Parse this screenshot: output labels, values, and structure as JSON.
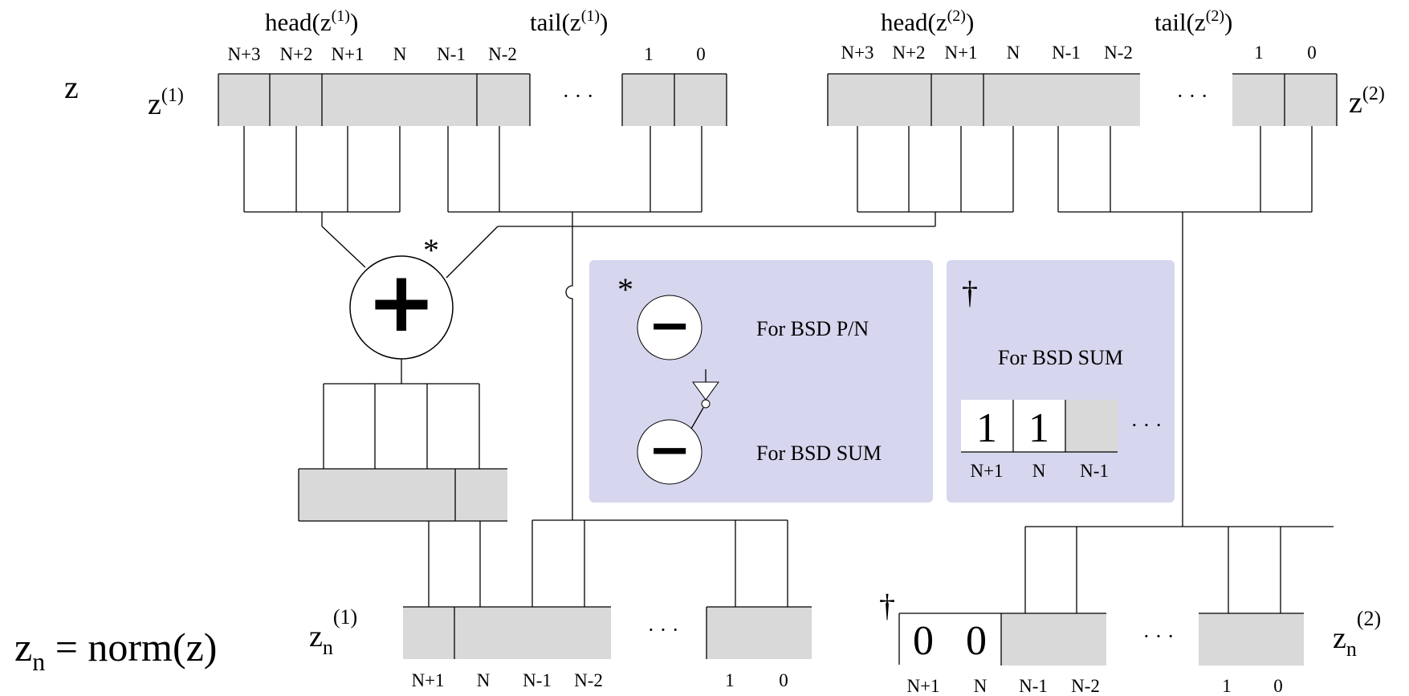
{
  "labels": {
    "z": "z",
    "z1": "z",
    "z1_sup": "(1)",
    "z2": "z",
    "z2_sup": "(2)",
    "head1": "head(z",
    "head1_sup": "(1)",
    "head1_close": ")",
    "tail1": "tail(z",
    "tail1_sup": "(1)",
    "tail1_close": ")",
    "head2": "head(z",
    "head2_sup": "(2)",
    "head2_close": ")",
    "tail2": "tail(z",
    "tail2_sup": "(2)",
    "tail2_close": ")",
    "zn1": "z",
    "zn1_sub": "n",
    "zn1_sup": "(1)",
    "zn2": "z",
    "zn2_sub": "n",
    "zn2_sup": "(2)",
    "norm_lhs": "z",
    "norm_sub": "n",
    "norm_rhs": " = norm(z)",
    "ellipsis": "· · ·",
    "star": "*",
    "dagger": "†",
    "plus": "+",
    "minus": "−"
  },
  "top_indices": {
    "z1": [
      "N+3",
      "N+2",
      "N+1",
      "N",
      "N-1",
      "N-2",
      "1",
      "0"
    ],
    "z2": [
      "N+3",
      "N+2",
      "N+1",
      "N",
      "N-1",
      "N-2",
      "1",
      "0"
    ]
  },
  "bottom_indices": {
    "zn1": [
      "N+1",
      "N",
      "N-1",
      "N-2",
      "1",
      "0"
    ],
    "zn2": [
      "N+1",
      "N",
      "N-1",
      "N-2",
      "1",
      "0"
    ]
  },
  "zn2_digits": [
    "0",
    "0"
  ],
  "legend_star": {
    "mark": "*",
    "line1": "For BSD P/N",
    "line2": "For BSD SUM"
  },
  "legend_dagger": {
    "mark": "†",
    "line1": "For BSD SUM",
    "digits": [
      "1",
      "1"
    ],
    "indices": [
      "N+1",
      "N",
      "N-1"
    ]
  },
  "colors": {
    "cell_fill": "#d9d9d9",
    "panel_fill": "#d6d6ee"
  }
}
